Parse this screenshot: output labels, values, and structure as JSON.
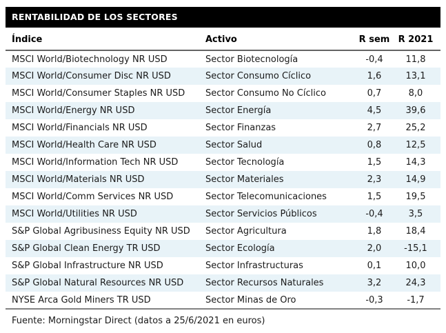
{
  "title": "RENTABILIDAD DE LOS SECTORES",
  "table": {
    "columns": [
      "Índice",
      "Activo",
      "R sem",
      "R 2021"
    ],
    "rows": [
      [
        "MSCI World/Biotechnology NR USD",
        "Sector Biotecnología",
        "-0,4",
        "11,8"
      ],
      [
        "MSCI World/Consumer Disc NR USD",
        "Sector Consumo Cíclico",
        "1,6",
        "13,1"
      ],
      [
        "MSCI World/Consumer Staples NR USD",
        "Sector Consumo No Cíclico",
        "0,7",
        "8,0"
      ],
      [
        "MSCI World/Energy NR USD",
        "Sector Energía",
        "4,5",
        "39,6"
      ],
      [
        "MSCI World/Financials NR USD",
        "Sector Finanzas",
        "2,7",
        "25,2"
      ],
      [
        "MSCI World/Health Care NR USD",
        "Sector Salud",
        "0,8",
        "12,5"
      ],
      [
        "MSCI World/Information Tech NR USD",
        "Sector Tecnología",
        "1,5",
        "14,3"
      ],
      [
        "MSCI World/Materials NR USD",
        "Sector Materiales",
        "2,3",
        "14,9"
      ],
      [
        "MSCI World/Comm Services NR USD",
        "Sector Telecomunicaciones",
        "1,5",
        "19,5"
      ],
      [
        "MSCI World/Utilities NR USD",
        "Sector Servicios Públicos",
        "-0,4",
        "3,5"
      ],
      [
        "S&P Global Agribusiness Equity NR USD",
        "Sector Agricultura",
        "1,8",
        "18,4"
      ],
      [
        "S&P Global Clean Energy TR USD",
        "Sector Ecología",
        "2,0",
        "-15,1"
      ],
      [
        "S&P Global Infrastructure NR USD",
        "Sector Infrastructuras",
        "0,1",
        "10,0"
      ],
      [
        "S&P Global Natural Resources NR USD",
        "Sector Recursos Naturales",
        "3,2",
        "24,3"
      ],
      [
        "NYSE Arca Gold Miners TR USD",
        "Sector Minas de Oro",
        "-0,3",
        "-1,7"
      ]
    ]
  },
  "footer": "Fuente: Morningstar Direct (datos a 25/6/2021 en euros)",
  "colors": {
    "title_bar_bg": "#000000",
    "title_text": "#ffffff",
    "row_alt_bg": "#e8f3f8",
    "header_rule": "#636363",
    "bottom_rule": "#808080",
    "text": "#1a1a1a"
  }
}
